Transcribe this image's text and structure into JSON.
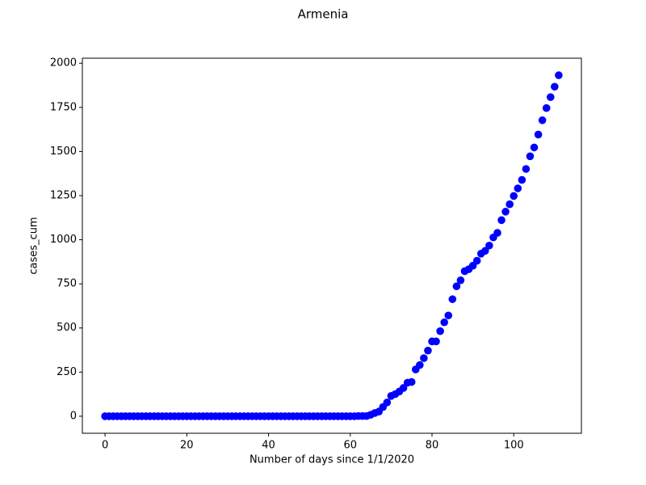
{
  "chart_data": {
    "type": "scatter",
    "title": "Armenia",
    "xlabel": "Number of days since 1/1/2020",
    "ylabel": "cases_cum",
    "color": "#0000ff",
    "x": [
      0,
      1,
      2,
      3,
      4,
      5,
      6,
      7,
      8,
      9,
      10,
      11,
      12,
      13,
      14,
      15,
      16,
      17,
      18,
      19,
      20,
      21,
      22,
      23,
      24,
      25,
      26,
      27,
      28,
      29,
      30,
      31,
      32,
      33,
      34,
      35,
      36,
      37,
      38,
      39,
      40,
      41,
      42,
      43,
      44,
      45,
      46,
      47,
      48,
      49,
      50,
      51,
      52,
      53,
      54,
      55,
      56,
      57,
      58,
      59,
      60,
      61,
      62,
      63,
      64,
      65,
      66,
      67,
      68,
      69,
      70,
      71,
      72,
      73,
      74,
      75,
      76,
      77,
      78,
      79,
      80,
      81,
      82,
      83,
      84,
      85,
      86,
      87,
      88,
      89,
      90,
      91,
      92,
      93,
      94,
      95,
      96,
      97,
      98,
      99,
      100,
      101,
      102,
      103,
      104,
      105,
      106,
      107,
      108,
      109,
      110,
      111
    ],
    "values": [
      0,
      0,
      0,
      0,
      0,
      0,
      0,
      0,
      0,
      0,
      0,
      0,
      0,
      0,
      0,
      0,
      0,
      0,
      0,
      0,
      0,
      0,
      0,
      0,
      0,
      0,
      0,
      0,
      0,
      0,
      0,
      0,
      0,
      0,
      0,
      0,
      0,
      0,
      0,
      0,
      0,
      0,
      0,
      0,
      0,
      0,
      0,
      0,
      0,
      0,
      0,
      0,
      0,
      0,
      0,
      0,
      0,
      0,
      0,
      0,
      0,
      0,
      1,
      1,
      1,
      8,
      18,
      26,
      52,
      78,
      115,
      125,
      140,
      160,
      190,
      194,
      265,
      290,
      329,
      372,
      424,
      424,
      482,
      532,
      571,
      663,
      736,
      770,
      822,
      833,
      853,
      881,
      921,
      937,
      967,
      1013,
      1039,
      1111,
      1159,
      1201,
      1248,
      1291,
      1339,
      1401,
      1473,
      1523,
      1596,
      1677,
      1746,
      1808,
      1867,
      1932
    ],
    "xlim": [
      -5.55,
      116.55
    ],
    "ylim": [
      -96.6,
      2028.6
    ],
    "xticks": [
      0,
      20,
      40,
      60,
      80,
      100
    ],
    "yticks": [
      0,
      250,
      500,
      750,
      1000,
      1250,
      1500,
      1750,
      2000
    ]
  }
}
